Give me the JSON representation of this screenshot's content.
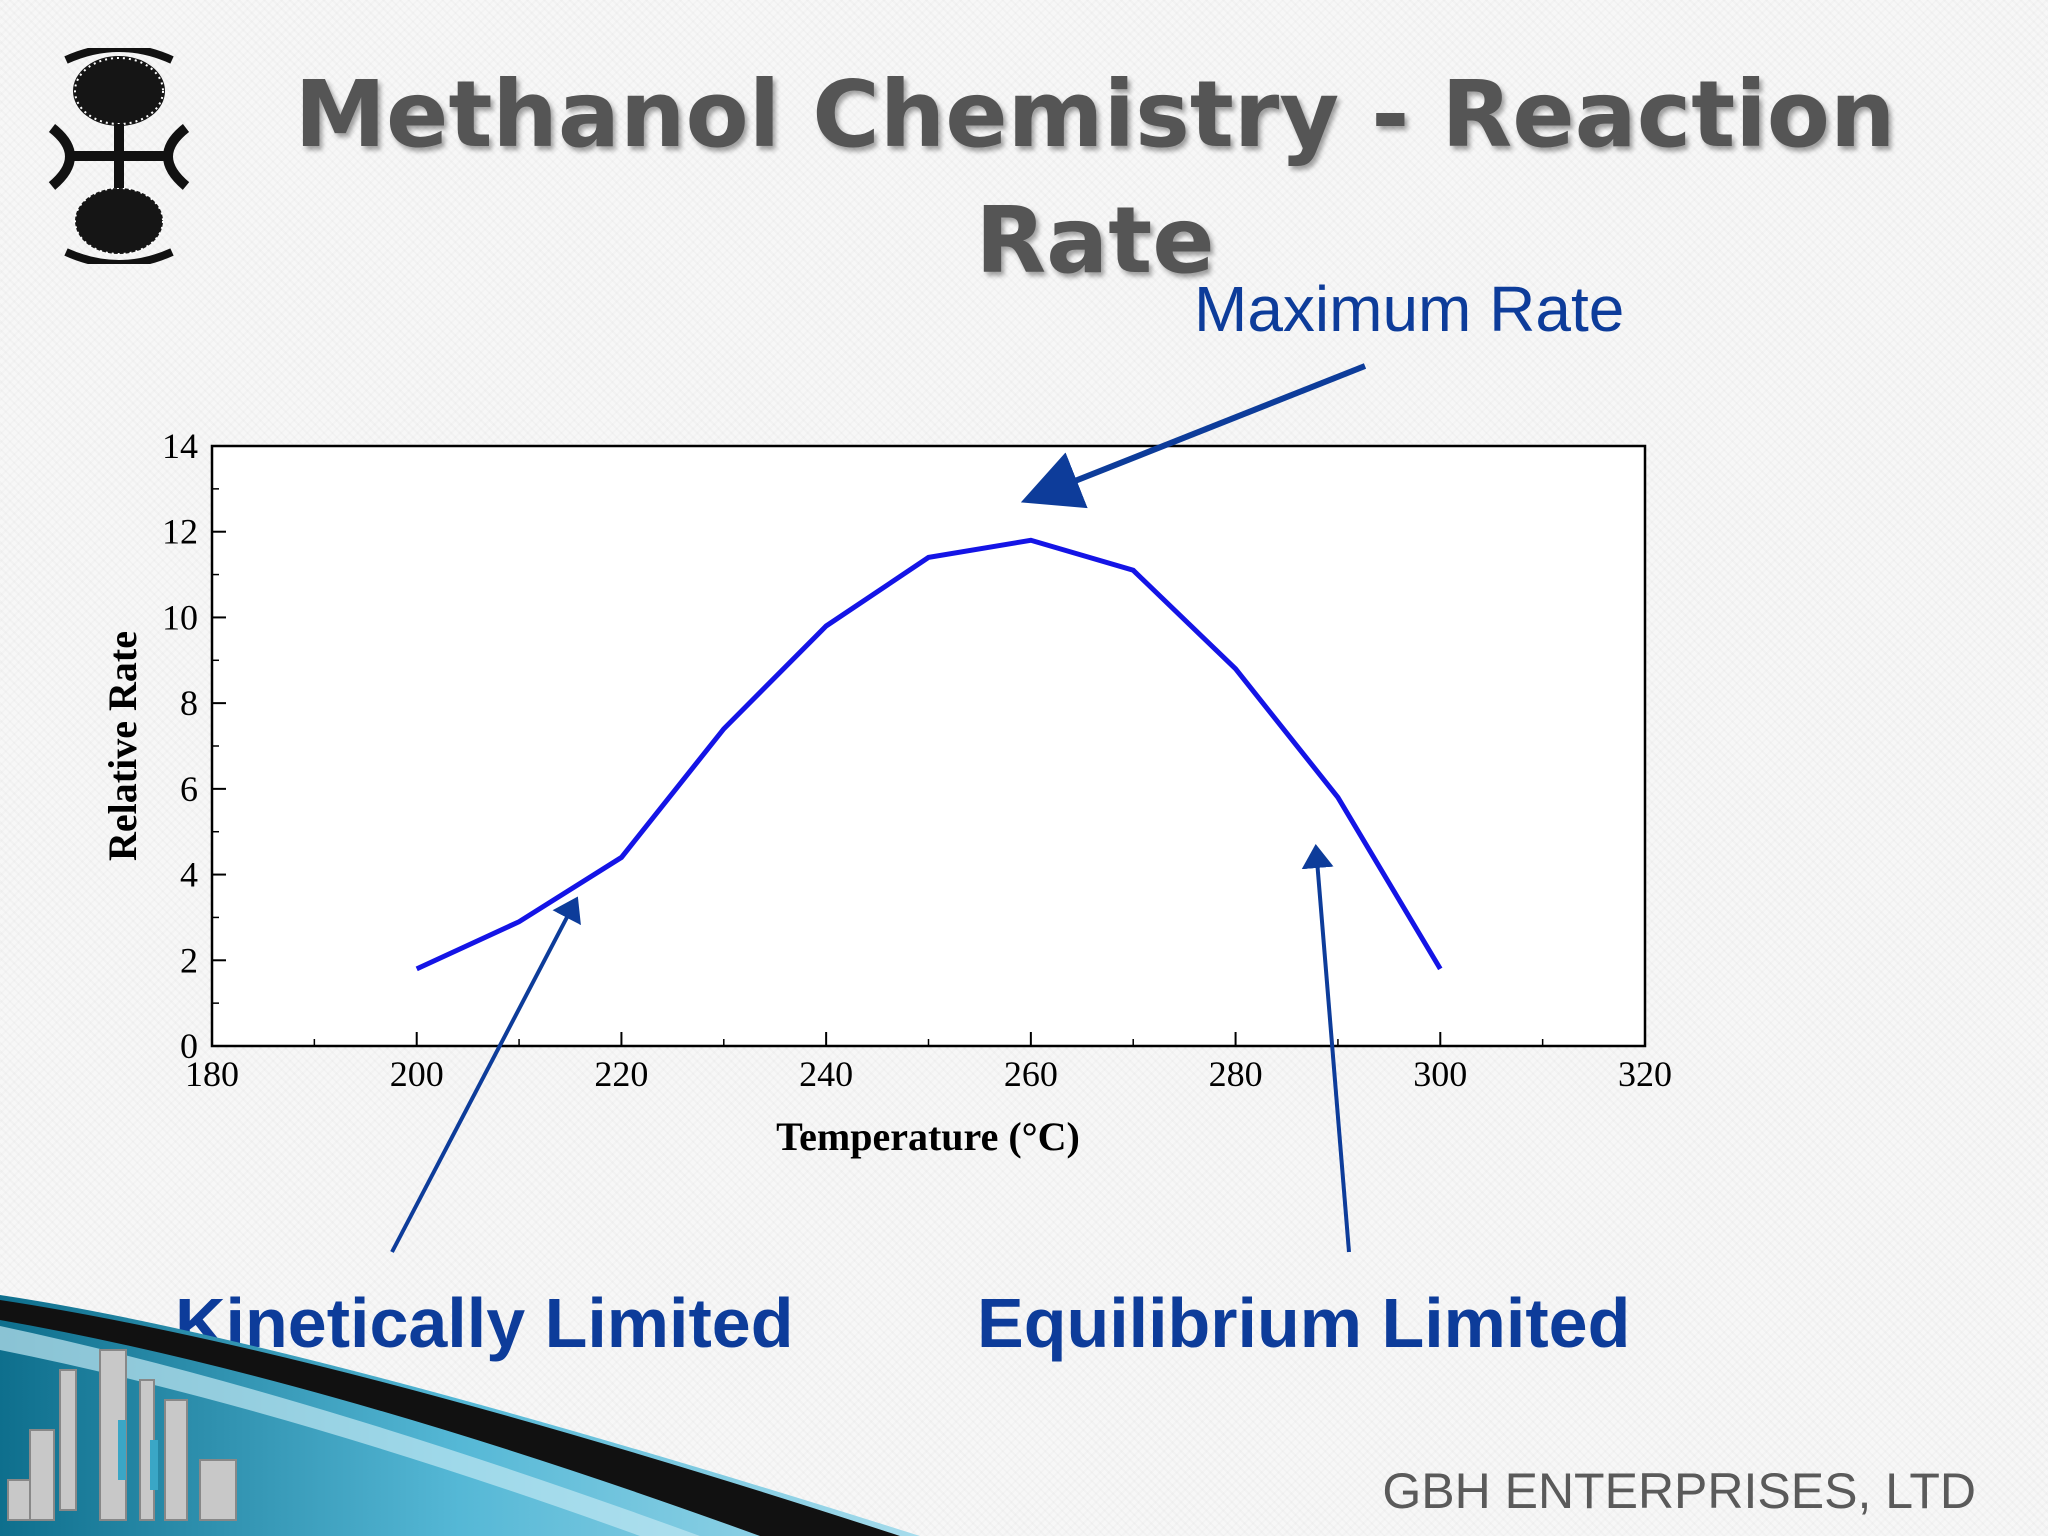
{
  "slide": {
    "title": "Methanol Chemistry - Reaction Rate",
    "footer": "GBH ENTERPRISES, LTD",
    "annotations": {
      "maximum": "Maximum Rate",
      "kinetic": "Kinetically Limited",
      "equilibrium": "Equilibrium Limited"
    },
    "colors": {
      "annotation": "#0d3c9a",
      "series": "#1414e6",
      "title": "#555555"
    }
  },
  "chart_data": {
    "type": "line",
    "xlabel": "Temperature (°C)",
    "ylabel": "Relative Rate",
    "xlim": [
      180,
      320
    ],
    "ylim": [
      0,
      14
    ],
    "xticks": [
      "180",
      "200",
      "220",
      "240",
      "260",
      "280",
      "300",
      "320"
    ],
    "yticks": [
      "0",
      "2",
      "4",
      "6",
      "8",
      "10",
      "12",
      "14"
    ],
    "grid": false,
    "series": [
      {
        "x": [
          200,
          210,
          220,
          230,
          240,
          250,
          260,
          270,
          280,
          290,
          300
        ],
        "y": [
          1.8,
          2.9,
          4.4,
          7.4,
          9.8,
          11.4,
          11.8,
          11.1,
          8.8,
          5.8,
          1.8
        ]
      }
    ]
  }
}
